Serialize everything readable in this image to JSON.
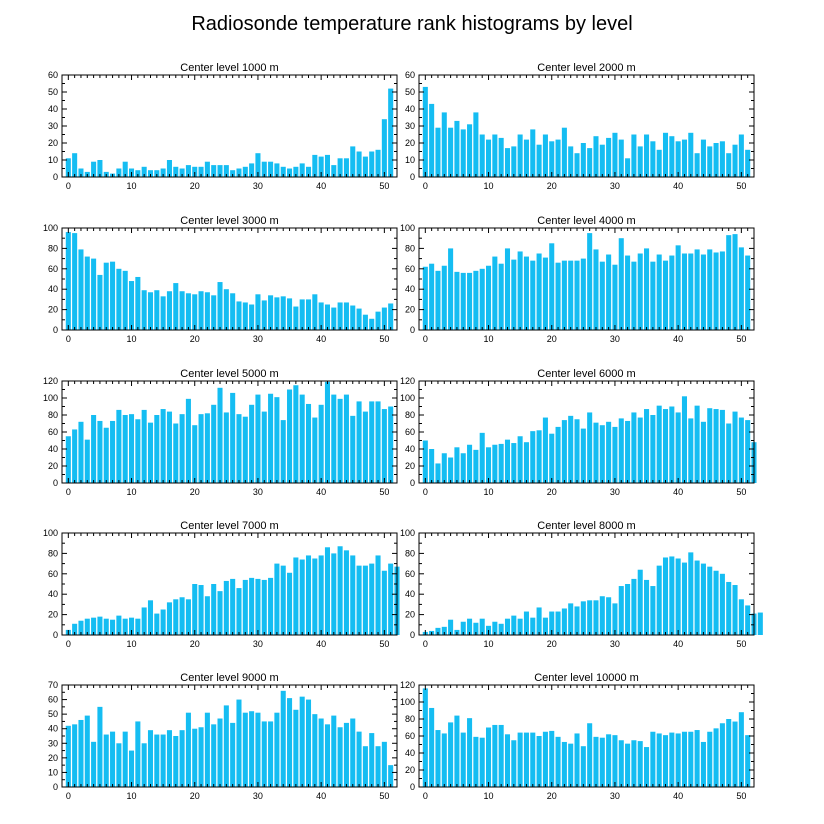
{
  "title": "Radiosonde temperature rank histograms by level",
  "colors": {
    "bar": "#15bdf2",
    "axis": "#000000",
    "background": "#ffffff"
  },
  "chart_data": [
    {
      "type": "bar",
      "title": "Center level 1000 m",
      "ylim": [
        0,
        60
      ],
      "yticks": [
        0,
        10,
        20,
        30,
        40,
        50,
        60
      ],
      "xlim": [
        -1,
        52
      ],
      "xticks": [
        0,
        10,
        20,
        30,
        40,
        50
      ],
      "values": [
        11,
        14,
        5,
        3,
        9,
        10,
        3,
        2,
        5,
        9,
        5,
        4,
        6,
        4,
        4,
        5,
        10,
        6,
        5,
        7,
        6,
        6,
        9,
        7,
        7,
        7,
        4,
        5,
        6,
        8,
        14,
        9,
        9,
        8,
        6,
        5,
        6,
        8,
        6,
        13,
        12,
        13,
        7,
        11,
        11,
        18,
        15,
        12,
        15,
        16,
        34,
        52
      ]
    },
    {
      "type": "bar",
      "title": "Center level 2000 m",
      "ylim": [
        0,
        60
      ],
      "yticks": [
        0,
        10,
        20,
        30,
        40,
        50,
        60
      ],
      "xlim": [
        -1,
        52
      ],
      "xticks": [
        0,
        10,
        20,
        30,
        40,
        50
      ],
      "values": [
        53,
        43,
        29,
        38,
        29,
        33,
        28,
        31,
        38,
        25,
        22,
        25,
        23,
        17,
        18,
        25,
        22,
        28,
        19,
        25,
        21,
        22,
        29,
        18,
        14,
        20,
        17,
        24,
        19,
        23,
        26,
        22,
        11,
        25,
        18,
        25,
        21,
        16,
        26,
        24,
        21,
        22,
        26,
        14,
        22,
        18,
        20,
        21,
        14,
        19,
        25,
        16
      ]
    },
    {
      "type": "bar",
      "title": "Center level 3000 m",
      "ylim": [
        0,
        100
      ],
      "yticks": [
        0,
        20,
        40,
        60,
        80,
        100
      ],
      "xlim": [
        -1,
        52
      ],
      "xticks": [
        0,
        10,
        20,
        30,
        40,
        50
      ],
      "values": [
        96,
        95,
        79,
        72,
        70,
        54,
        66,
        67,
        60,
        58,
        48,
        52,
        39,
        37,
        39,
        33,
        38,
        46,
        38,
        36,
        35,
        38,
        37,
        34,
        47,
        40,
        36,
        28,
        27,
        25,
        35,
        29,
        34,
        32,
        33,
        31,
        23,
        30,
        30,
        35,
        27,
        25,
        22,
        27,
        27,
        24,
        21,
        15,
        11,
        18,
        22,
        26
      ]
    },
    {
      "type": "bar",
      "title": "Center level 4000 m",
      "ylim": [
        0,
        100
      ],
      "yticks": [
        0,
        20,
        40,
        60,
        80,
        100
      ],
      "xlim": [
        -1,
        52
      ],
      "xticks": [
        0,
        10,
        20,
        30,
        40,
        50
      ],
      "values": [
        62,
        65,
        58,
        63,
        80,
        57,
        56,
        56,
        58,
        60,
        63,
        72,
        65,
        80,
        69,
        77,
        72,
        68,
        75,
        71,
        85,
        66,
        68,
        68,
        68,
        70,
        95,
        79,
        67,
        74,
        64,
        90,
        73,
        67,
        75,
        80,
        67,
        74,
        68,
        73,
        83,
        75,
        75,
        79,
        74,
        79,
        76,
        77,
        93,
        94,
        81,
        73
      ]
    },
    {
      "type": "bar",
      "title": "Center level 5000 m",
      "ylim": [
        0,
        120
      ],
      "yticks": [
        0,
        20,
        40,
        60,
        80,
        100,
        120
      ],
      "xlim": [
        -1,
        52
      ],
      "xticks": [
        0,
        10,
        20,
        30,
        40,
        50
      ],
      "values": [
        55,
        63,
        72,
        51,
        80,
        73,
        65,
        73,
        86,
        80,
        81,
        75,
        86,
        71,
        80,
        87,
        84,
        70,
        81,
        99,
        68,
        81,
        82,
        92,
        112,
        83,
        106,
        81,
        78,
        92,
        104,
        84,
        105,
        101,
        74,
        110,
        115,
        104,
        93,
        77,
        92,
        119,
        104,
        99,
        104,
        79,
        96,
        84,
        96,
        96,
        87,
        90
      ]
    },
    {
      "type": "bar",
      "title": "Center level 6000 m",
      "ylim": [
        0,
        120
      ],
      "yticks": [
        0,
        20,
        40,
        60,
        80,
        100,
        120
      ],
      "xlim": [
        -1,
        52
      ],
      "xticks": [
        0,
        10,
        20,
        30,
        40,
        50
      ],
      "values": [
        50,
        40,
        23,
        35,
        30,
        42,
        35,
        45,
        39,
        59,
        42,
        45,
        46,
        51,
        47,
        55,
        48,
        61,
        62,
        77,
        58,
        66,
        74,
        79,
        75,
        64,
        83,
        71,
        68,
        72,
        66,
        76,
        73,
        83,
        77,
        87,
        80,
        91,
        87,
        90,
        83,
        102,
        76,
        91,
        72,
        88,
        87,
        86,
        70,
        84,
        77,
        74,
        48
      ]
    },
    {
      "type": "bar",
      "title": "Center level 7000 m",
      "ylim": [
        0,
        100
      ],
      "yticks": [
        0,
        20,
        40,
        60,
        80,
        100
      ],
      "xlim": [
        -1,
        52
      ],
      "xticks": [
        0,
        10,
        20,
        30,
        40,
        50
      ],
      "values": [
        5,
        11,
        14,
        16,
        17,
        18,
        16,
        15,
        19,
        16,
        17,
        16,
        27,
        34,
        21,
        25,
        32,
        35,
        37,
        35,
        50,
        49,
        38,
        50,
        43,
        53,
        55,
        46,
        54,
        56,
        55,
        54,
        56,
        70,
        68,
        61,
        76,
        74,
        78,
        75,
        78,
        86,
        80,
        87,
        83,
        78,
        68,
        68,
        70,
        78,
        63,
        70,
        67
      ]
    },
    {
      "type": "bar",
      "title": "Center level 8000 m",
      "ylim": [
        0,
        100
      ],
      "yticks": [
        0,
        20,
        40,
        60,
        80,
        100
      ],
      "xlim": [
        -1,
        52
      ],
      "xticks": [
        0,
        10,
        20,
        30,
        40,
        50
      ],
      "values": [
        3,
        4,
        7,
        8,
        15,
        5,
        13,
        16,
        12,
        16,
        9,
        13,
        11,
        16,
        19,
        16,
        23,
        17,
        27,
        17,
        23,
        23,
        26,
        31,
        28,
        33,
        34,
        34,
        38,
        37,
        31,
        48,
        50,
        55,
        64,
        54,
        48,
        68,
        76,
        77,
        75,
        71,
        81,
        73,
        70,
        67,
        63,
        60,
        52,
        49,
        35,
        29,
        21,
        22
      ]
    },
    {
      "type": "bar",
      "title": "Center level 9000 m",
      "ylim": [
        0,
        70
      ],
      "yticks": [
        0,
        10,
        20,
        30,
        40,
        50,
        60,
        70
      ],
      "xlim": [
        -1,
        52
      ],
      "xticks": [
        0,
        10,
        20,
        30,
        40,
        50
      ],
      "values": [
        42,
        43,
        46,
        49,
        31,
        55,
        36,
        38,
        30,
        38,
        25,
        45,
        30,
        39,
        36,
        36,
        39,
        35,
        39,
        51,
        40,
        41,
        51,
        43,
        47,
        56,
        44,
        60,
        51,
        52,
        51,
        45,
        45,
        51,
        66,
        61,
        53,
        62,
        60,
        50,
        47,
        43,
        49,
        41,
        44,
        47,
        38,
        28,
        37,
        28,
        31,
        15
      ]
    },
    {
      "type": "bar",
      "title": "Center level 10000 m",
      "ylim": [
        0,
        120
      ],
      "yticks": [
        0,
        20,
        40,
        60,
        80,
        100,
        120
      ],
      "xlim": [
        -1,
        52
      ],
      "xticks": [
        0,
        10,
        20,
        30,
        40,
        50
      ],
      "values": [
        116,
        93,
        67,
        63,
        76,
        84,
        64,
        81,
        59,
        58,
        70,
        73,
        73,
        62,
        55,
        64,
        64,
        64,
        60,
        65,
        66,
        59,
        53,
        51,
        63,
        48,
        75,
        59,
        58,
        62,
        61,
        55,
        51,
        55,
        54,
        47,
        65,
        63,
        61,
        64,
        63,
        65,
        65,
        67,
        53,
        65,
        69,
        75,
        80,
        77,
        88,
        61
      ]
    }
  ]
}
